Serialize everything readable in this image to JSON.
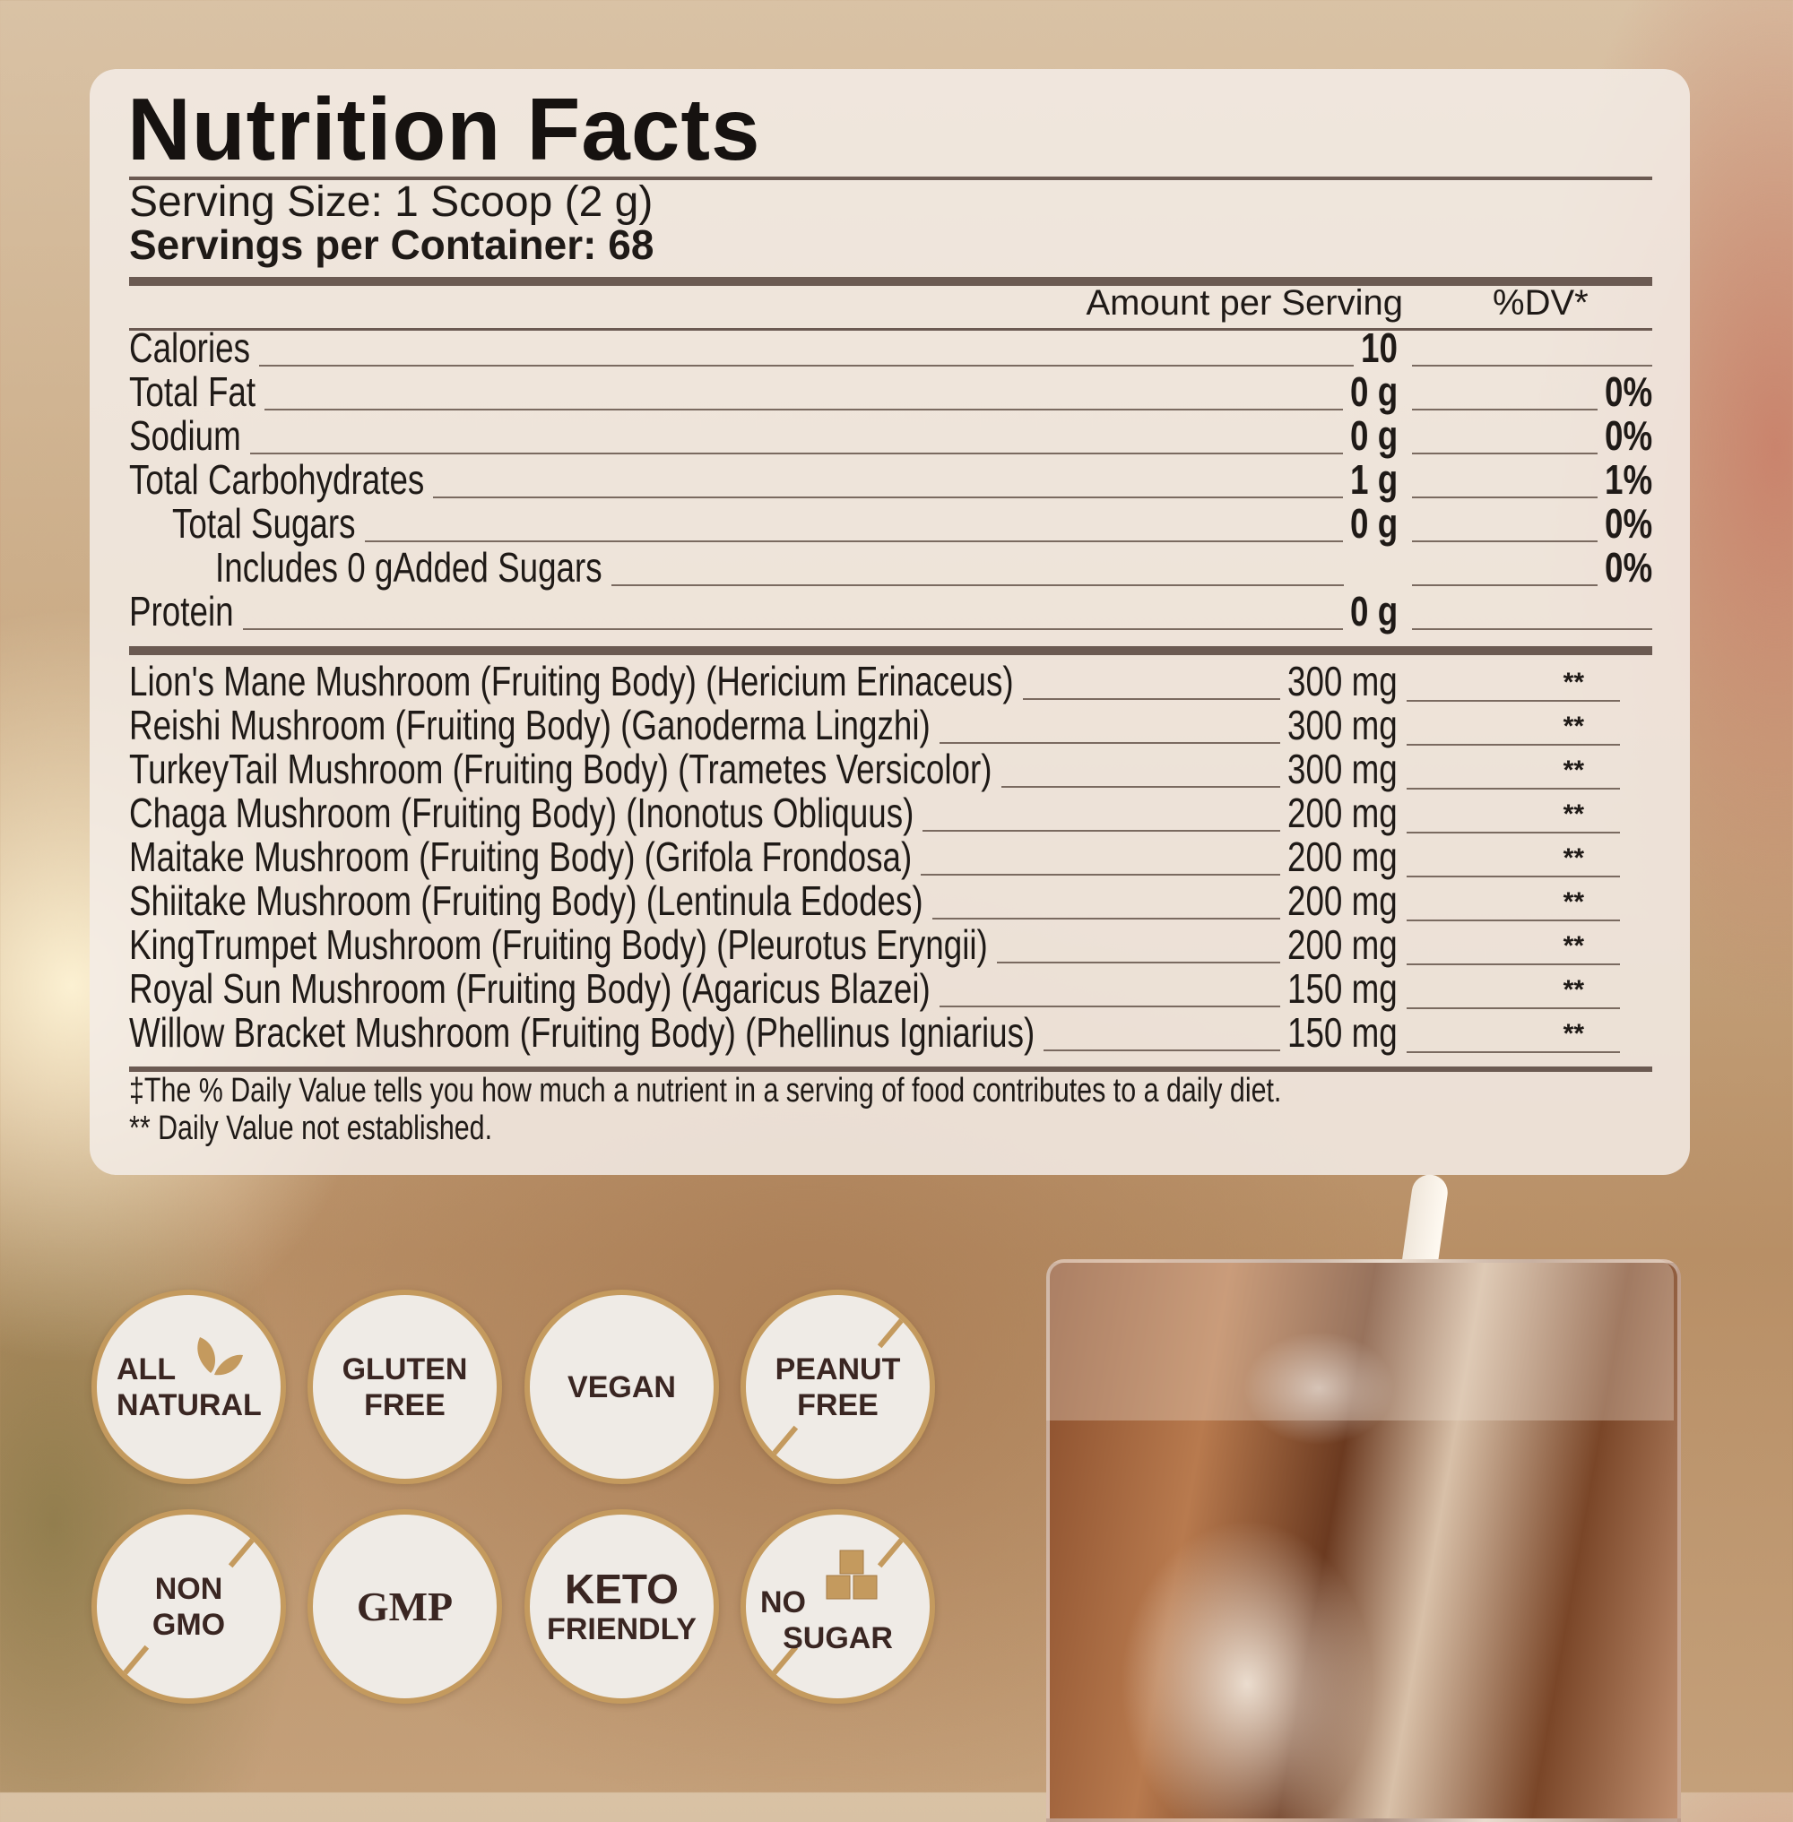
{
  "title": "Nutrition Facts",
  "serving_size": "Serving Size: 1 Scoop (2 g)",
  "servings_per_container": "Servings per Container: 68",
  "header": {
    "amount": "Amount per Serving",
    "dv": "%DV*"
  },
  "nutrients": [
    {
      "label": "Calories",
      "value": "10",
      "dv": "",
      "indent": 0
    },
    {
      "label": "Total Fat",
      "value": "0 g",
      "dv": "0%",
      "indent": 0
    },
    {
      "label": "Sodium",
      "value": "0 g",
      "dv": "0%",
      "indent": 0
    },
    {
      "label": "Total Carbohydrates",
      "value": "1 g",
      "dv": "1%",
      "indent": 0
    },
    {
      "label": "Total Sugars",
      "value": "0 g",
      "dv": "0%",
      "indent": 1
    },
    {
      "label": "Includes 0 gAdded Sugars",
      "value": "",
      "dv": "0%",
      "indent": 2
    },
    {
      "label": "Protein",
      "value": "0 g",
      "dv": "",
      "indent": 0
    }
  ],
  "ingredients": [
    {
      "label": "Lion's Mane Mushroom (Fruiting Body) (Hericium Erinaceus)",
      "value": "300 mg",
      "dv": "**"
    },
    {
      "label": "Reishi Mushroom (Fruiting Body) (Ganoderma Lingzhi)",
      "value": "300 mg",
      "dv": "**"
    },
    {
      "label": "TurkeyTail Mushroom (Fruiting Body) (Trametes Versicolor)",
      "value": "300 mg",
      "dv": "**"
    },
    {
      "label": "Chaga Mushroom (Fruiting Body) (Inonotus Obliquus)",
      "value": "200 mg",
      "dv": "**"
    },
    {
      "label": "Maitake Mushroom (Fruiting Body) (Grifola Frondosa)",
      "value": "200 mg",
      "dv": "**"
    },
    {
      "label": "Shiitake Mushroom (Fruiting Body) (Lentinula Edodes)",
      "value": "200 mg",
      "dv": "**"
    },
    {
      "label": "KingTrumpet Mushroom (Fruiting Body) (Pleurotus Eryngii)",
      "value": "200 mg",
      "dv": "**"
    },
    {
      "label": "Royal Sun Mushroom (Fruiting Body) (Agaricus Blazei)",
      "value": "150 mg",
      "dv": "**"
    },
    {
      "label": "Willow Bracket Mushroom (Fruiting Body) (Phellinus Igniarius)",
      "value": "150 mg",
      "dv": "**"
    }
  ],
  "footnotes": [
    "‡The % Daily Value tells you how much a nutrient in a serving of food contributes to a daily diet.",
    "** Daily Value not established."
  ],
  "badges": [
    {
      "lines": [
        "ALL",
        "NATURAL"
      ],
      "icon": "leaf-icon"
    },
    {
      "lines": [
        "GLUTEN",
        "FREE"
      ],
      "icon": ""
    },
    {
      "lines": [
        "VEGAN"
      ],
      "icon": ""
    },
    {
      "lines": [
        "PEANUT",
        "FREE"
      ],
      "icon": "slash-icon"
    },
    {
      "lines": [
        "NON",
        "GMO"
      ],
      "icon": "slash-icon"
    },
    {
      "lines": [
        "GMP"
      ],
      "icon": ""
    },
    {
      "lines": [
        "KETO",
        "FRIENDLY"
      ],
      "icon": ""
    },
    {
      "lines": [
        "NO",
        "SUGAR"
      ],
      "icon": "sugar-cubes-icon"
    }
  ],
  "colors": {
    "text": "#1f1a17",
    "rule": "#6b5a52",
    "badge_ring": "#c49a5e",
    "badge_text": "#3a2622",
    "panel": "#f3ece6"
  }
}
